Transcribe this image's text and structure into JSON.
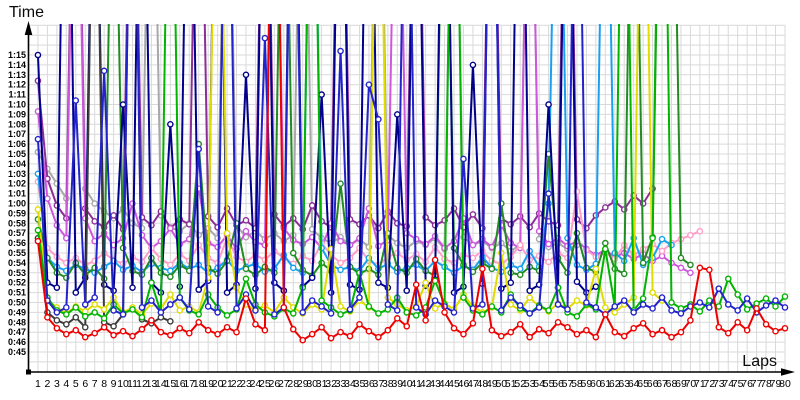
{
  "axis_titles": {
    "y": "Time",
    "x": "Laps"
  },
  "y_tick_labels": [
    "1:15",
    "1:14",
    "1:13",
    "1:12",
    "1:11",
    "1:10",
    "1:09",
    "1:08",
    "1:07",
    "1:06",
    "1:05",
    "1:04",
    "1:03",
    "1:02",
    "1:01",
    "1:00",
    "0:59",
    "0:58",
    "0:57",
    "0:56",
    "0:55",
    "0:54",
    "0:53",
    "0:52",
    "0:51",
    "0:50",
    "0:49",
    "0:48",
    "0:47",
    "0:46",
    "0:45"
  ],
  "colors": {
    "grid": "#d9d9d9",
    "axis": "#000000",
    "text": "#000000",
    "marker_fill": "#ffffff"
  },
  "chart_data": {
    "type": "line",
    "title": "",
    "xlabel": "Laps",
    "ylabel": "Time",
    "x": [
      1,
      2,
      3,
      4,
      5,
      6,
      7,
      8,
      9,
      10,
      11,
      12,
      13,
      14,
      15,
      16,
      17,
      18,
      19,
      20,
      21,
      22,
      23,
      24,
      25,
      26,
      27,
      28,
      29,
      30,
      31,
      32,
      33,
      34,
      35,
      36,
      37,
      38,
      39,
      40,
      41,
      42,
      43,
      44,
      45,
      46,
      47,
      48,
      49,
      50,
      51,
      52,
      53,
      54,
      55,
      56,
      57,
      58,
      59,
      60,
      61,
      62,
      63,
      64,
      65,
      66,
      67,
      68,
      69,
      70,
      71,
      72,
      73,
      74,
      75,
      76,
      77,
      78,
      79,
      80
    ],
    "x_range": [
      1,
      80
    ],
    "y_axis_seconds_range": [
      45,
      75
    ],
    "y_tick_step_seconds": 1,
    "values_unit": "seconds per lap; values above 78 are pit/slow laps drawn off the top of the plot",
    "grid": true,
    "legend_position": "none",
    "series": [
      {
        "name": "gray",
        "color": "#a8a8a8",
        "values": [
          65.2,
          63.5,
          62.0,
          60.5,
          110.0,
          61.5,
          60.0,
          59.2,
          58.5,
          59.5,
          58.0,
          57.5,
          112.0,
          58.8,
          57.6,
          57.2,
          58.0,
          56.8,
          57.5,
          56.5,
          108.0,
          57.8,
          56.6,
          57.2,
          56.4,
          57.0,
          56.2,
          56.8,
          111.0,
          57.4,
          56.5,
          56.0,
          56.6,
          55.8,
          56.4,
          55.6,
          113.0,
          56.8,
          56.0,
          55.5,
          56.2,
          55.8,
          56.5,
          55.4,
          109.0,
          56.6,
          55.8,
          56.2,
          55.5,
          56.0,
          55.2,
          55.8,
          110.0,
          56.4,
          55.6,
          56.0,
          55.4,
          55.8
        ]
      },
      {
        "name": "purple",
        "color": "#8b2f97",
        "values": [
          72.4,
          62.5,
          59.8,
          58.5,
          112.0,
          59.5,
          58.2,
          57.6,
          58.8,
          57.4,
          110.0,
          58.6,
          57.8,
          59.2,
          57.5,
          58.4,
          57.9,
          113.0,
          58.7,
          57.6,
          59.5,
          57.8,
          58.3,
          57.5,
          111.0,
          58.9,
          57.7,
          58.5,
          57.4,
          59.8,
          58.2,
          57.6,
          114.0,
          58.4,
          57.9,
          58.8,
          57.5,
          59.2,
          58.0,
          57.7,
          112.0,
          58.6,
          57.8,
          58.3,
          59.5,
          57.6,
          58.9,
          57.5,
          110.0,
          58.5,
          57.9,
          58.7,
          57.6,
          59.0,
          58.2,
          57.8,
          113.0,
          58.4,
          57.5,
          58.8,
          59.6,
          60.2,
          59.4,
          60.8,
          60.0,
          61.5
        ]
      },
      {
        "name": "violet",
        "color": "#cd56dd",
        "values": [
          69.3,
          60.5,
          57.8,
          56.5,
          108.0,
          58.5,
          56.2,
          57.0,
          55.8,
          56.5,
          60.0,
          56.8,
          55.5,
          56.2,
          57.5,
          55.9,
          56.4,
          61.5,
          56.0,
          55.6,
          56.8,
          55.4,
          57.2,
          56.1,
          55.8,
          110.0,
          57.5,
          56.3,
          55.9,
          56.6,
          55.5,
          58.0,
          56.2,
          55.8,
          56.5,
          59.5,
          55.7,
          56.3,
          111.0,
          57.0,
          56.4,
          55.9,
          56.7,
          55.5,
          56.2,
          58.5,
          55.8,
          56.4,
          55.6,
          57.8,
          56.0,
          55.5,
          109.0,
          57.2,
          55.9,
          56.5,
          55.7,
          56.2,
          55.4,
          54.8,
          55.3,
          54.6,
          55.0,
          54.4,
          54.9,
          54.2,
          54.7,
          54.0,
          53.5,
          53.0
        ]
      },
      {
        "name": "pink",
        "color": "#ff9ec8",
        "values": [
          62.2,
          55.5,
          54.6,
          54.0,
          54.5,
          53.8,
          54.2,
          55.0,
          54.3,
          53.9,
          54.6,
          54.1,
          55.5,
          54.4,
          53.8,
          54.9,
          54.2,
          55.8,
          54.5,
          54.0,
          56.5,
          54.6,
          54.1,
          54.8,
          54.3,
          55.2,
          54.5,
          53.9,
          54.7,
          54.2,
          56.0,
          54.8,
          54.0,
          54.5,
          55.5,
          54.2,
          53.8,
          54.6,
          55.0,
          54.3,
          54.9,
          54.1,
          55.6,
          54.4,
          54.0,
          54.8,
          54.5,
          55.2,
          54.2,
          53.9,
          54.6,
          55.8,
          54.3,
          54.7,
          54.1,
          55.0,
          54.5,
          61.2,
          55.3,
          54.6,
          55.0,
          54.4,
          55.8,
          54.8,
          55.4,
          55.9,
          55.2,
          56.0,
          56.4,
          56.8,
          57.2
        ]
      },
      {
        "name": "cyan",
        "color": "#18a0f0",
        "values": [
          63.0,
          54.5,
          53.6,
          53.2,
          53.8,
          53.4,
          53.0,
          53.6,
          54.2,
          53.3,
          53.7,
          53.1,
          53.9,
          53.5,
          53.2,
          54.0,
          53.4,
          53.8,
          53.0,
          53.5,
          54.3,
          53.2,
          53.6,
          53.9,
          53.1,
          53.4,
          54.8,
          53.5,
          53.0,
          110.0,
          55.5,
          53.8,
          53.3,
          53.6,
          53.2,
          54.5,
          53.4,
          53.9,
          53.1,
          53.5,
          53.8,
          53.2,
          54.2,
          53.6,
          53.0,
          53.7,
          53.3,
          54.6,
          53.5,
          53.1,
          53.8,
          53.4,
          55.2,
          53.6,
          60.0,
          112.0,
          56.5,
          53.8,
          53.3,
          53.9,
          111.0,
          55.0,
          54.2,
          56.5,
          53.8,
          54.5,
          56.4,
          55.8
        ]
      },
      {
        "name": "dark-green",
        "color": "#228b22",
        "values": [
          58.4,
          54.5,
          53.0,
          52.5,
          54.0,
          52.8,
          53.5,
          52.4,
          105.0,
          55.5,
          53.2,
          52.8,
          54.5,
          53.0,
          52.6,
          53.8,
          53.2,
          66.0,
          53.5,
          52.9,
          54.2,
          58.0,
          53.4,
          52.8,
          53.6,
          53.0,
          110.0,
          55.0,
          53.3,
          52.7,
          54.0,
          53.2,
          62.0,
          53.6,
          52.9,
          53.4,
          52.8,
          57.0,
          53.5,
          53.0,
          54.4,
          53.2,
          52.7,
          108.0,
          55.5,
          53.8,
          53.1,
          54.0,
          53.4,
          60.0,
          53.0,
          52.8,
          53.6,
          53.2,
          65.0,
          54.5,
          53.0,
          57.0,
          53.5,
          53.1,
          56.0,
          53.4,
          52.9,
          112.0,
          54.0,
          56.6,
          113.0,
          110.0,
          54.5,
          53.8
        ]
      },
      {
        "name": "navy",
        "color": "#00008b",
        "values": [
          75.0,
          52.0,
          51.5,
          118.0,
          51.0,
          52.5,
          110.0,
          51.8,
          51.2,
          70.0,
          51.5,
          115.0,
          52.0,
          51.0,
          68.0,
          51.6,
          112.0,
          51.3,
          52.2,
          116.0,
          51.0,
          51.8,
          73.0,
          51.4,
          113.0,
          52.0,
          51.2,
          117.0,
          51.6,
          52.5,
          71.0,
          51.0,
          114.0,
          51.8,
          51.3,
          118.0,
          52.0,
          51.5,
          69.0,
          51.2,
          112.0,
          51.7,
          52.3,
          115.0,
          51.0,
          51.6,
          74.0,
          51.9,
          113.0,
          51.4,
          52.0,
          117.0,
          51.2,
          51.8,
          70.0,
          51.5,
          112.0,
          52.1,
          51.0,
          51.6
        ]
      },
      {
        "name": "black",
        "color": "#3c3c3c",
        "values": [
          56.5,
          49.0,
          48.2,
          47.8,
          48.5,
          47.5,
          109.0,
          48.0,
          47.6,
          48.8,
          112.0,
          48.3,
          47.9,
          48.5,
          48.1
        ]
      },
      {
        "name": "yellow",
        "color": "#e0dc00",
        "values": [
          59.4,
          50.2,
          49.5,
          48.9,
          49.6,
          49.1,
          49.8,
          49.3,
          50.5,
          49.0,
          49.5,
          48.8,
          49.9,
          49.4,
          50.8,
          49.2,
          49.6,
          49.0,
          52.5,
          112.0,
          57.0,
          51.5,
          49.8,
          49.2,
          49.7,
          49.0,
          50.5,
          49.5,
          48.9,
          49.8,
          49.3,
          55.4,
          49.6,
          49.1,
          50.2,
          49.5,
          110.0,
          50.5,
          49.8,
          49.2,
          49.6,
          52.0,
          49.4,
          49.9,
          49.3,
          50.8,
          49.6,
          49.0,
          49.5,
          55.0,
          49.8,
          49.2,
          50.5,
          49.6,
          49.1,
          49.9,
          49.4,
          50.2,
          49.7,
          53.4,
          49.5,
          49.0,
          49.8,
          50.5,
          113.0,
          51.0,
          50.2
        ]
      },
      {
        "name": "green",
        "color": "#00b400",
        "values": [
          57.3,
          50.5,
          49.2,
          48.8,
          49.5,
          48.6,
          49.0,
          48.4,
          49.8,
          48.9,
          49.3,
          48.5,
          52.0,
          49.0,
          112.0,
          50.5,
          49.2,
          48.8,
          50.8,
          49.5,
          48.7,
          49.3,
          52.4,
          49.8,
          49.0,
          48.6,
          49.4,
          48.9,
          51.5,
          115.0,
          50.2,
          49.5,
          48.8,
          49.2,
          53.0,
          49.6,
          48.9,
          49.3,
          50.5,
          49.0,
          48.7,
          49.5,
          52.2,
          49.8,
          117.0,
          50.5,
          49.2,
          48.8,
          49.6,
          49.0,
          50.8,
          49.4,
          48.9,
          49.7,
          49.2,
          51.5,
          49.0,
          48.6,
          49.8,
          49.3,
          55.4,
          49.6,
          113.0,
          49.2,
          50.4,
          56.5,
          119.0,
          50.0,
          49.4,
          49.8,
          49.1,
          50.2,
          49.6,
          52.4,
          50.8,
          49.3,
          49.9,
          50.4,
          49.6,
          50.6
        ]
      },
      {
        "name": "blue",
        "color": "#2323cc",
        "values": [
          66.5,
          50.2,
          49.0,
          49.5,
          70.4,
          49.8,
          50.5,
          73.4,
          49.2,
          48.8,
          112.0,
          49.5,
          50.2,
          49.0,
          49.8,
          50.5,
          49.3,
          65.5,
          49.6,
          49.0,
          110.0,
          49.4,
          50.8,
          49.2,
          76.7,
          48.8,
          49.5,
          113.0,
          49.0,
          50.2,
          49.6,
          48.9,
          75.4,
          49.3,
          50.5,
          72.0,
          68.5,
          49.8,
          49.2,
          111.0,
          49.5,
          48.8,
          50.2,
          49.6,
          49.0,
          64.5,
          49.4,
          49.8,
          115.0,
          49.2,
          50.5,
          49.7,
          48.9,
          49.5,
          61.0,
          49.8,
          49.3,
          112.0,
          50.0,
          49.5,
          48.8,
          49.6,
          50.2,
          49.0,
          49.8,
          49.4,
          50.5,
          49.2,
          48.9,
          49.6,
          50.0,
          49.5,
          51.4,
          49.8,
          49.2,
          50.4,
          49.0,
          49.7,
          50.2,
          49.5
        ]
      },
      {
        "name": "red",
        "color": "#ee0000",
        "values": [
          56.2,
          48.5,
          47.4,
          46.8,
          47.2,
          46.5,
          46.9,
          47.5,
          46.7,
          47.1,
          46.6,
          47.3,
          48.2,
          47.0,
          46.7,
          47.4,
          46.9,
          48.0,
          47.2,
          46.8,
          47.5,
          47.0,
          50.4,
          47.8,
          47.2,
          118.0,
          49.5,
          47.3,
          46.2,
          46.8,
          47.5,
          46.4,
          47.0,
          46.6,
          47.8,
          47.1,
          46.5,
          47.2,
          48.4,
          47.6,
          51.8,
          48.2,
          54.3,
          49.0,
          47.4,
          46.8,
          47.9,
          53.4,
          47.2,
          46.6,
          47.0,
          47.8,
          46.5,
          47.3,
          46.9,
          48.0,
          47.5,
          46.8,
          47.2,
          46.5,
          48.8,
          47.0,
          46.6,
          47.4,
          47.9,
          46.8,
          47.2,
          46.5,
          47.0,
          48.2,
          53.5,
          53.3,
          47.5,
          46.9,
          48.0,
          47.2,
          49.4,
          47.8,
          47.1,
          47.4
        ]
      }
    ]
  }
}
